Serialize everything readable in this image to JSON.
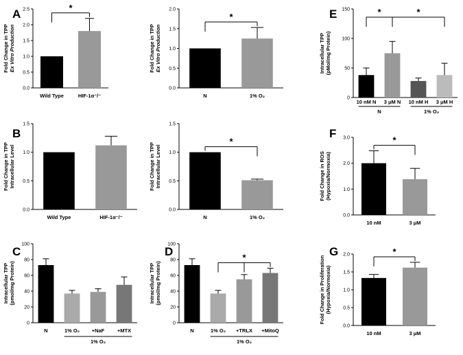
{
  "chart_data": [
    {
      "id": "A1",
      "panel_label": "A",
      "type": "bar",
      "ylabel": [
        "Fold Change in TPP",
        "Ex Vitro Production"
      ],
      "ylim": [
        0,
        2.5
      ],
      "yticks": [
        "0.0",
        "0.5",
        "1.0",
        "1.5",
        "2.0",
        "2.5"
      ],
      "categories": [
        "Wild Type",
        "HIF-1α⁻/⁻"
      ],
      "values": [
        1.0,
        1.8
      ],
      "errors": [
        0,
        0.4
      ],
      "colors": [
        "#000000",
        "#999999"
      ],
      "significance": [
        {
          "from": 0,
          "to": 1,
          "label": "*"
        }
      ]
    },
    {
      "id": "A2",
      "type": "bar",
      "ylabel": [
        "Fold Change in TPP",
        "Ex Vitro Production"
      ],
      "ylim": [
        0,
        2.0
      ],
      "yticks": [
        "0.0",
        "0.5",
        "1.0",
        "1.5",
        "2.0"
      ],
      "categories": [
        "N",
        "1% O₂"
      ],
      "values": [
        1.0,
        1.25
      ],
      "errors": [
        0,
        0.28
      ],
      "colors": [
        "#000000",
        "#999999"
      ],
      "significance": [
        {
          "from": 0,
          "to": 1,
          "label": "*"
        }
      ]
    },
    {
      "id": "B1",
      "panel_label": "B",
      "type": "bar",
      "ylabel": [
        "Fold Change in TPP",
        "Intracellular Level"
      ],
      "ylim": [
        0,
        1.5
      ],
      "yticks": [
        "0.0",
        "0.5",
        "1.0",
        "1.5"
      ],
      "categories": [
        "Wild Type",
        "HIF-1α⁻/⁻"
      ],
      "values": [
        1.0,
        1.12
      ],
      "errors": [
        0,
        0.16
      ],
      "colors": [
        "#000000",
        "#999999"
      ],
      "significance": []
    },
    {
      "id": "B2",
      "type": "bar",
      "ylabel": [
        "Fold Change in TPP",
        "Intracellular Level"
      ],
      "ylim": [
        0,
        1.5
      ],
      "yticks": [
        "0.0",
        "0.5",
        "1.0",
        "1.5"
      ],
      "categories": [
        "N",
        "1% O₂"
      ],
      "values": [
        1.0,
        0.51
      ],
      "errors": [
        0,
        0.02
      ],
      "colors": [
        "#000000",
        "#999999"
      ],
      "significance": [
        {
          "from": 0,
          "to": 1,
          "label": "*"
        }
      ]
    },
    {
      "id": "C",
      "panel_label": "C",
      "type": "bar",
      "ylabel": [
        "Intracellular TPP",
        "(pmol/mg Protein)"
      ],
      "ylim": [
        0,
        100
      ],
      "yticks": [
        "0",
        "20",
        "40",
        "60",
        "80",
        "100"
      ],
      "categories": [
        "N",
        "1% O₂",
        "+NaF",
        "+MTX"
      ],
      "values": [
        73,
        37,
        39,
        48
      ],
      "errors": [
        8,
        4,
        4,
        10
      ],
      "colors": [
        "#000000",
        "#aaaaaa",
        "#999999",
        "#777777"
      ],
      "groups": [
        {
          "from": 1,
          "to": 3,
          "label": "1% O₂"
        }
      ],
      "significance": []
    },
    {
      "id": "D",
      "panel_label": "D",
      "type": "bar",
      "ylabel": [
        "Intracellular TPP",
        "(pmol/mg Protein)"
      ],
      "ylim": [
        0,
        100
      ],
      "yticks": [
        "0",
        "20",
        "40",
        "60",
        "80",
        "100"
      ],
      "categories": [
        "N",
        "1% O₂",
        "+TRLX",
        "+MitoQ"
      ],
      "values": [
        73,
        37,
        55,
        63
      ],
      "errors": [
        8,
        4,
        6,
        6
      ],
      "colors": [
        "#000000",
        "#aaaaaa",
        "#999999",
        "#777777"
      ],
      "groups": [
        {
          "from": 1,
          "to": 3,
          "label": "1% O₂"
        }
      ],
      "significance": [
        {
          "from": 1,
          "to": [
            2,
            3
          ],
          "label": "*"
        }
      ]
    },
    {
      "id": "E",
      "panel_label": "E",
      "type": "bar",
      "ylabel": [
        "Intracellular TPP",
        "(pMol/mg Protein)"
      ],
      "ylim": [
        0,
        150
      ],
      "yticks": [
        "0",
        "50",
        "100",
        "150"
      ],
      "categories": [
        "10 nM N",
        "3 μM N",
        "10 nM H",
        "3 μM H"
      ],
      "values": [
        38,
        75,
        28,
        38
      ],
      "errors": [
        12,
        20,
        5,
        20
      ],
      "colors": [
        "#000000",
        "#999999",
        "#555555",
        "#bbbbbb"
      ],
      "groups": [
        {
          "from": 0,
          "to": 1,
          "label": "N"
        },
        {
          "from": 2,
          "to": 3,
          "label": "1% O₂"
        }
      ],
      "significance": [
        {
          "from": 0,
          "to": 1,
          "label": "*"
        },
        {
          "from": 1,
          "to": 3,
          "label": "*"
        }
      ]
    },
    {
      "id": "F",
      "panel_label": "F",
      "type": "bar",
      "ylabel": [
        "Fold Change in ROS",
        "(Hypoxia/Normoxia)"
      ],
      "ylim": [
        0,
        3.0
      ],
      "yticks": [
        "0.0",
        "1.0",
        "2.0",
        "3.0"
      ],
      "categories": [
        "10 nM",
        "3 μM"
      ],
      "values": [
        2.0,
        1.38
      ],
      "errors": [
        0.48,
        0.42
      ],
      "colors": [
        "#000000",
        "#999999"
      ],
      "significance": [
        {
          "from": 0,
          "to": 1,
          "label": "*"
        }
      ]
    },
    {
      "id": "G",
      "panel_label": "G",
      "type": "bar",
      "ylabel": [
        "Fold Change in Proliferation",
        "(Hypoxia/Normoxia)"
      ],
      "ylim": [
        0,
        2.0
      ],
      "yticks": [
        "0.0",
        "0.5",
        "1.0",
        "1.5",
        "2.0"
      ],
      "categories": [
        "10 nM",
        "3 μM"
      ],
      "values": [
        1.33,
        1.62
      ],
      "errors": [
        0.1,
        0.15
      ],
      "colors": [
        "#000000",
        "#999999"
      ],
      "significance": [
        {
          "from": 0,
          "to": 1,
          "label": "*"
        }
      ]
    }
  ]
}
